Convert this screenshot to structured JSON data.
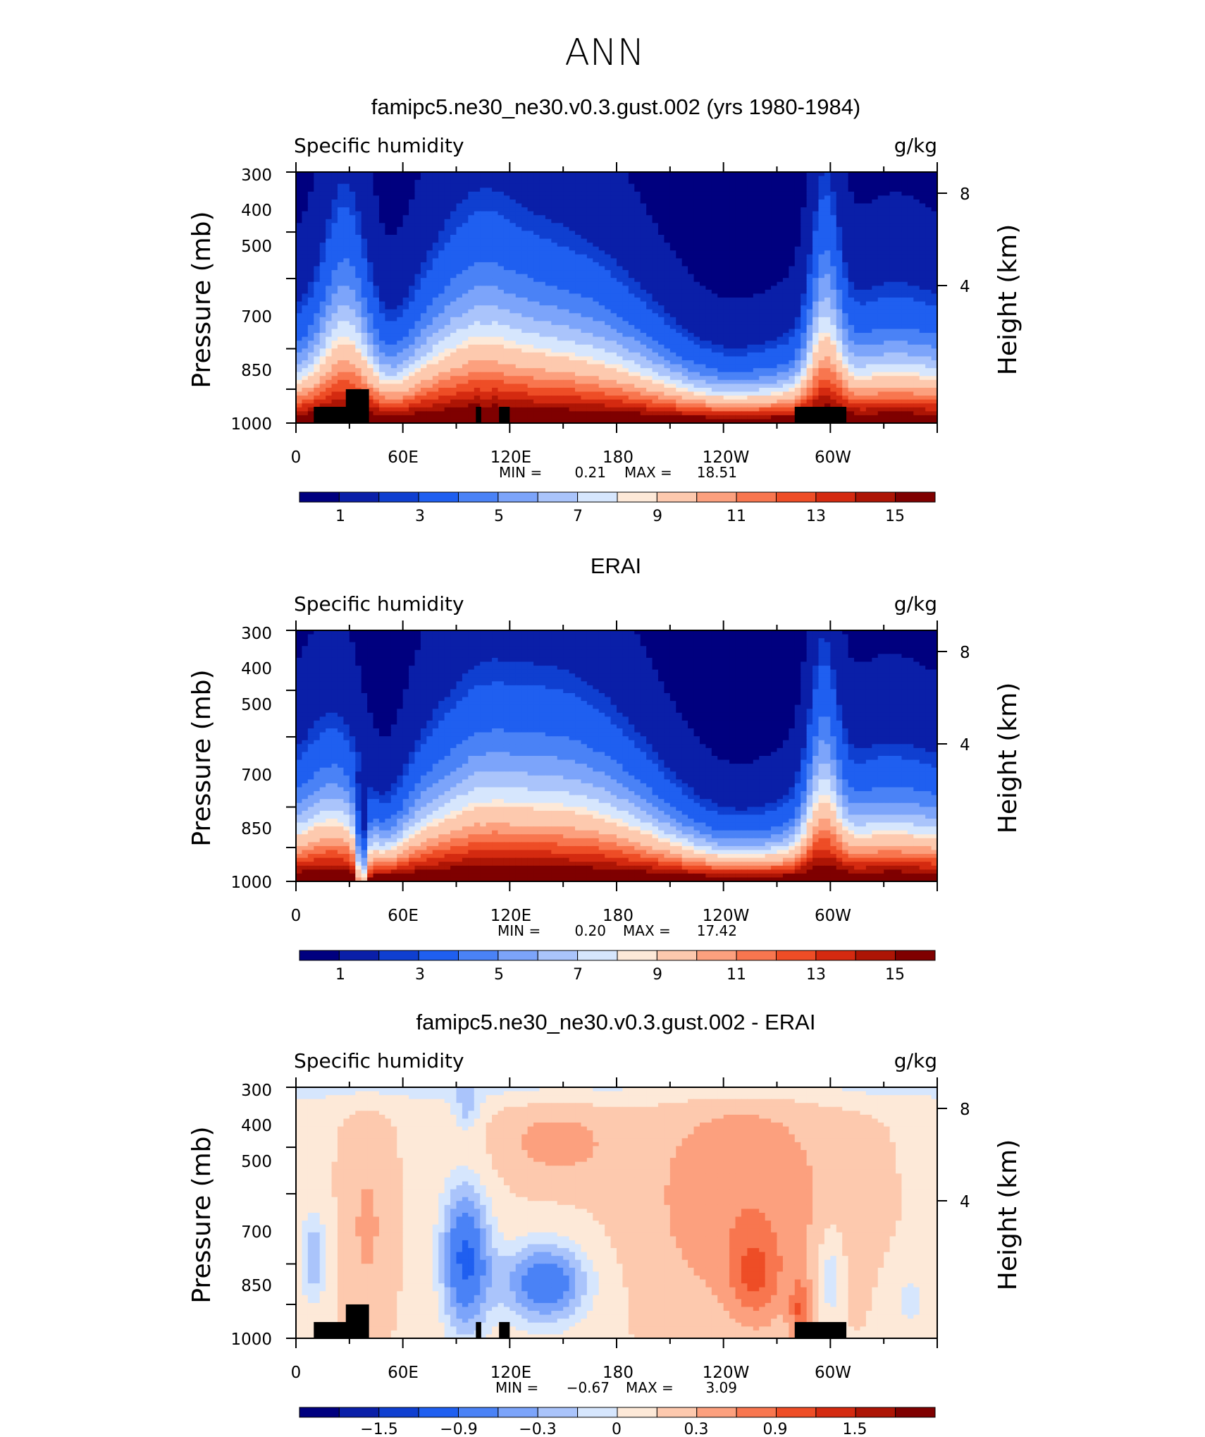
{
  "figure": {
    "title": "ANN",
    "colors": {
      "qpalette": [
        "#00007f",
        "#0a1fa8",
        "#0f3fd0",
        "#1f5ff0",
        "#4a82f6",
        "#7ca4fa",
        "#aac4fb",
        "#d6e6fd",
        "#fde9d8",
        "#fdc9ae",
        "#fca07e",
        "#f8764f",
        "#ee4d26",
        "#d42a10",
        "#ad1505",
        "#7f0000"
      ],
      "dpalette": [
        "#00007f",
        "#0a1fa8",
        "#0f3fd0",
        "#1f5ff0",
        "#4a82f6",
        "#7ca4fa",
        "#aac4fb",
        "#d6e6fd",
        "#fde9d8",
        "#fdc9ae",
        "#fca07e",
        "#f8764f",
        "#ee4d26",
        "#d42a10",
        "#ad1505",
        "#7f0000"
      ],
      "mask": "#000000"
    }
  },
  "chart_data": [
    {
      "type": "contour",
      "title": "famipc5.ne30_ne30.v0.3.gust.002 (yrs 1980-1984)",
      "left_label": "Specific humidity",
      "right_label": "g/kg",
      "ylabel": "Pressure (mb)",
      "ylabel_right": "Height (km)",
      "yticks": [
        "300",
        "400",
        "500",
        "700",
        "850",
        "1000"
      ],
      "yticks_right": [
        "8",
        "4"
      ],
      "xticks": [
        "0",
        "60E",
        "120E",
        "180",
        "120W",
        "60W"
      ],
      "xlim": [
        0,
        360
      ],
      "ylim": [
        1000,
        300
      ],
      "stats": {
        "min_label": "MIN =",
        "min": "0.21",
        "max_label": "MAX =",
        "max": "18.51"
      },
      "colorbar": {
        "labels": [
          "1",
          "3",
          "5",
          "7",
          "9",
          "11",
          "13",
          "15"
        ]
      }
    },
    {
      "type": "contour",
      "title": "ERAI",
      "left_label": "Specific humidity",
      "right_label": "g/kg",
      "ylabel": "Pressure (mb)",
      "ylabel_right": "Height (km)",
      "yticks": [
        "300",
        "400",
        "500",
        "700",
        "850",
        "1000"
      ],
      "yticks_right": [
        "8",
        "4"
      ],
      "xticks": [
        "0",
        "60E",
        "120E",
        "180",
        "120W",
        "60W"
      ],
      "xlim": [
        0,
        360
      ],
      "ylim": [
        1000,
        300
      ],
      "stats": {
        "min_label": "MIN =",
        "min": "0.20",
        "max_label": "MAX =",
        "max": "17.42"
      },
      "colorbar": {
        "labels": [
          "1",
          "3",
          "5",
          "7",
          "9",
          "11",
          "13",
          "15"
        ]
      }
    },
    {
      "type": "contour",
      "title": "famipc5.ne30_ne30.v0.3.gust.002 - ERAI",
      "left_label": "Specific humidity",
      "right_label": "g/kg",
      "ylabel": "Pressure (mb)",
      "ylabel_right": "Height (km)",
      "yticks": [
        "300",
        "400",
        "500",
        "700",
        "850",
        "1000"
      ],
      "yticks_right": [
        "8",
        "4"
      ],
      "xticks": [
        "0",
        "60E",
        "120E",
        "180",
        "120W",
        "60W"
      ],
      "xlim": [
        0,
        360
      ],
      "ylim": [
        1000,
        300
      ],
      "stats": {
        "min_label": "MIN =",
        "min": "−0.67",
        "max_label": "MAX =",
        "max": "3.09"
      },
      "colorbar": {
        "labels": [
          "−1.5",
          "−0.9",
          "−0.3",
          "0",
          "0.3",
          "0.9",
          "1.5"
        ]
      }
    }
  ]
}
